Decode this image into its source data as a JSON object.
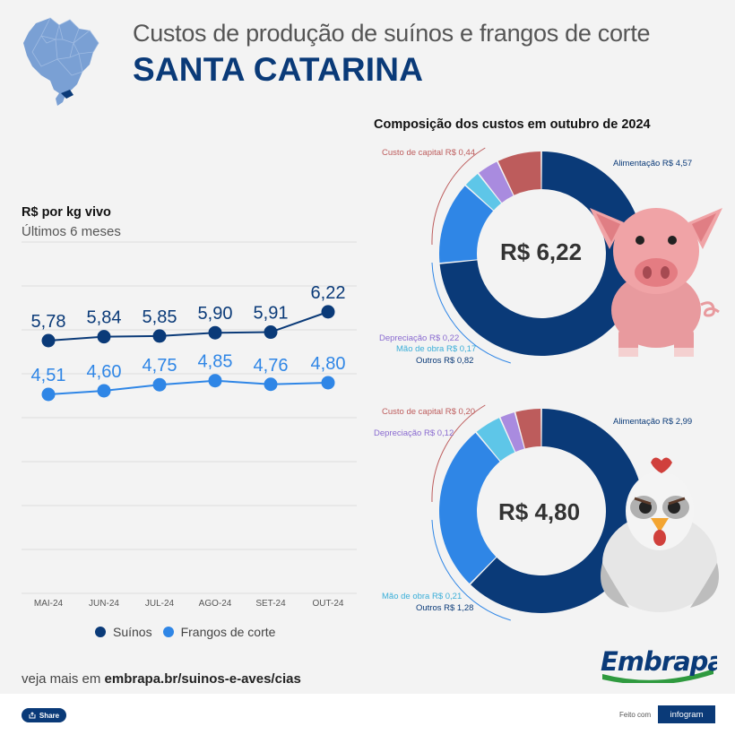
{
  "header": {
    "title": "Custos de produção de suínos e frangos de corte",
    "region": "SANTA CATARINA"
  },
  "line_chart": {
    "title": "R$ por kg vivo",
    "subtitle": "Últimos 6 meses"
  },
  "composition": {
    "title": "Composição dos custos em outubro de 2024"
  },
  "colors": {
    "navy": "#0a3a78",
    "blue": "#2f86e6",
    "capital": "#bd5c5c",
    "depreciacao": "#a98bdf",
    "mao_de_obra": "#5ec6e8",
    "outros": "#2f86e6",
    "alimentacao": "#0a3a78"
  },
  "chart_data": [
    {
      "type": "line",
      "title": "R$ por kg vivo",
      "subtitle": "Últimos 6 meses",
      "x": [
        "MAI-24",
        "JUN-24",
        "JUL-24",
        "AGO-24",
        "SET-24",
        "OUT-24"
      ],
      "ylim": [
        0,
        7
      ],
      "grid": true,
      "legend": "bottom",
      "series": [
        {
          "name": "Suínos",
          "values": [
            5.78,
            5.84,
            5.85,
            5.9,
            5.91,
            6.22
          ],
          "labels": [
            "5,78",
            "5,84",
            "5,85",
            "5,90",
            "5,91",
            "6,22"
          ],
          "color": "#0a3a78"
        },
        {
          "name": "Frangos de corte",
          "values": [
            4.51,
            4.6,
            4.75,
            4.85,
            4.76,
            4.8
          ],
          "labels": [
            "4,51",
            "4,60",
            "4,75",
            "4,85",
            "4,76",
            "4,80"
          ],
          "color": "#2f86e6"
        }
      ]
    },
    {
      "type": "pie",
      "center_label": "R$ 6,22",
      "total": 6.22,
      "slices": [
        {
          "label": "Alimentação R$ 4,57",
          "value": 4.57,
          "color": "#0a3a78"
        },
        {
          "label": "Outros R$ 0,82",
          "value": 0.82,
          "color": "#2f86e6"
        },
        {
          "label": "Mão de obra R$ 0,17",
          "value": 0.17,
          "color": "#5ec6e8"
        },
        {
          "label": "Depreciação R$ 0,22",
          "value": 0.22,
          "color": "#a98bdf"
        },
        {
          "label": "Custo de capital R$ 0,44",
          "value": 0.44,
          "color": "#bd5c5c"
        }
      ]
    },
    {
      "type": "pie",
      "center_label": "R$ 4,80",
      "total": 4.8,
      "slices": [
        {
          "label": "Alimentação R$ 2,99",
          "value": 2.99,
          "color": "#0a3a78"
        },
        {
          "label": "Outros R$ 1,28",
          "value": 1.28,
          "color": "#2f86e6"
        },
        {
          "label": "Mão de obra R$ 0,21",
          "value": 0.21,
          "color": "#5ec6e8"
        },
        {
          "label": "Depreciação R$ 0,12",
          "value": 0.12,
          "color": "#a98bdf"
        },
        {
          "label": "Custo de capital R$ 0,20",
          "value": 0.2,
          "color": "#bd5c5c"
        }
      ]
    }
  ],
  "footer": {
    "prefix": "veja mais em ",
    "link": "embrapa.br/suinos-e-aves/cias",
    "logo_text": "Embrapa",
    "share_label": "Share",
    "made_with": "Feito com",
    "brand": "infogram"
  },
  "icons": {
    "map": "brazil-map-icon",
    "pig": "pig-illustration",
    "chicken": "chicken-illustration",
    "share": "share-icon"
  }
}
